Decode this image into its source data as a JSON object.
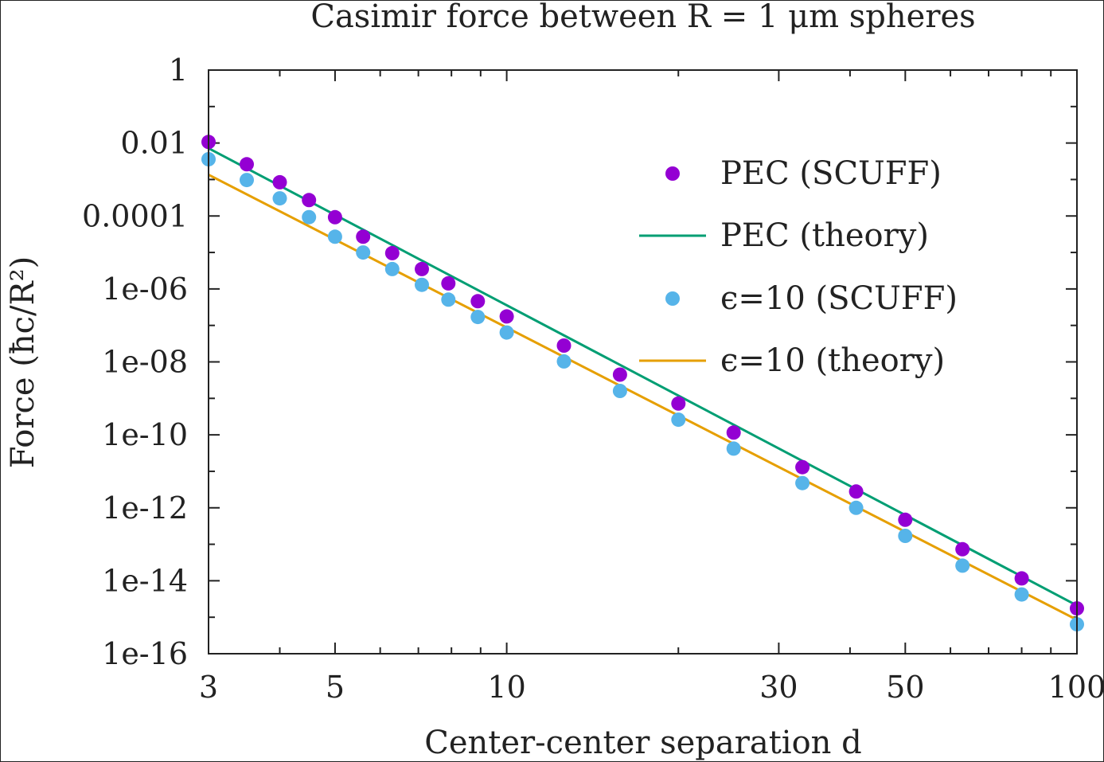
{
  "chart_data": {
    "type": "scatter",
    "title": "Casimir force between R = 1 μm spheres",
    "xlabel": "Center-center separation d",
    "ylabel": "Force (ħc/R²)",
    "x_scale": "log",
    "y_scale": "log",
    "xlim": [
      3,
      100
    ],
    "ylim": [
      1e-16,
      1
    ],
    "x_ticks": [
      3,
      5,
      10,
      30,
      50,
      100
    ],
    "x_tick_labels": [
      "3",
      "5",
      "10",
      "30",
      "50",
      "100"
    ],
    "y_ticks": [
      1,
      0.01,
      0.0001,
      1e-06,
      1e-08,
      1e-10,
      1e-12,
      1e-14,
      1e-16
    ],
    "y_tick_labels": [
      "1",
      "0.01",
      "0.0001",
      "1e-06",
      "1e-08",
      "1e-10",
      "1e-12",
      "1e-14",
      "1e-16"
    ],
    "grid": false,
    "legend_position": "top-right",
    "series": [
      {
        "name": "PEC (SCUFF)",
        "kind": "points",
        "color": "#9400d3",
        "x": [
          3,
          3.5,
          4,
          4.5,
          5,
          5.6,
          6.3,
          7.1,
          7.9,
          8.9,
          10,
          12.6,
          15.8,
          20,
          25,
          33,
          41,
          50,
          63,
          80,
          100
        ],
        "y": [
          0.0107,
          0.00262,
          0.000842,
          0.000272,
          9.24e-05,
          2.7e-05,
          9.6e-06,
          3.5e-06,
          1.42e-06,
          4.6e-07,
          1.76e-07,
          2.8e-08,
          4.48e-09,
          7.2e-10,
          1.15e-10,
          1.3e-11,
          2.8e-12,
          4.7e-13,
          7.3e-14,
          1.16e-14,
          1.75e-15
        ]
      },
      {
        "name": "PEC (theory)",
        "kind": "line",
        "color": "#009e73",
        "x": [
          3,
          100
        ],
        "y": [
          0.0072,
          2.1e-15
        ]
      },
      {
        "name": "ϵ=10 (SCUFF)",
        "kind": "points",
        "color": "#56b4e9",
        "x": [
          3,
          3.5,
          4,
          4.5,
          5,
          5.6,
          6.3,
          7.1,
          7.9,
          8.9,
          10,
          12.6,
          15.8,
          20,
          25,
          33,
          41,
          50,
          63,
          80,
          100
        ],
        "y": [
          0.0036,
          0.000965,
          0.000305,
          9.3e-05,
          2.7e-05,
          1e-05,
          3.5e-06,
          1.3e-06,
          5.1e-07,
          1.7e-07,
          6.4e-08,
          1.03e-08,
          1.6e-09,
          2.6e-10,
          4.2e-11,
          4.75e-12,
          1e-12,
          1.7e-13,
          2.6e-14,
          4.2e-15,
          6.4e-16
        ]
      },
      {
        "name": "ϵ=10 (theory)",
        "kind": "line",
        "color": "#e69f00",
        "x": [
          3,
          100
        ],
        "y": [
          0.00135,
          8.5e-16
        ]
      }
    ]
  }
}
